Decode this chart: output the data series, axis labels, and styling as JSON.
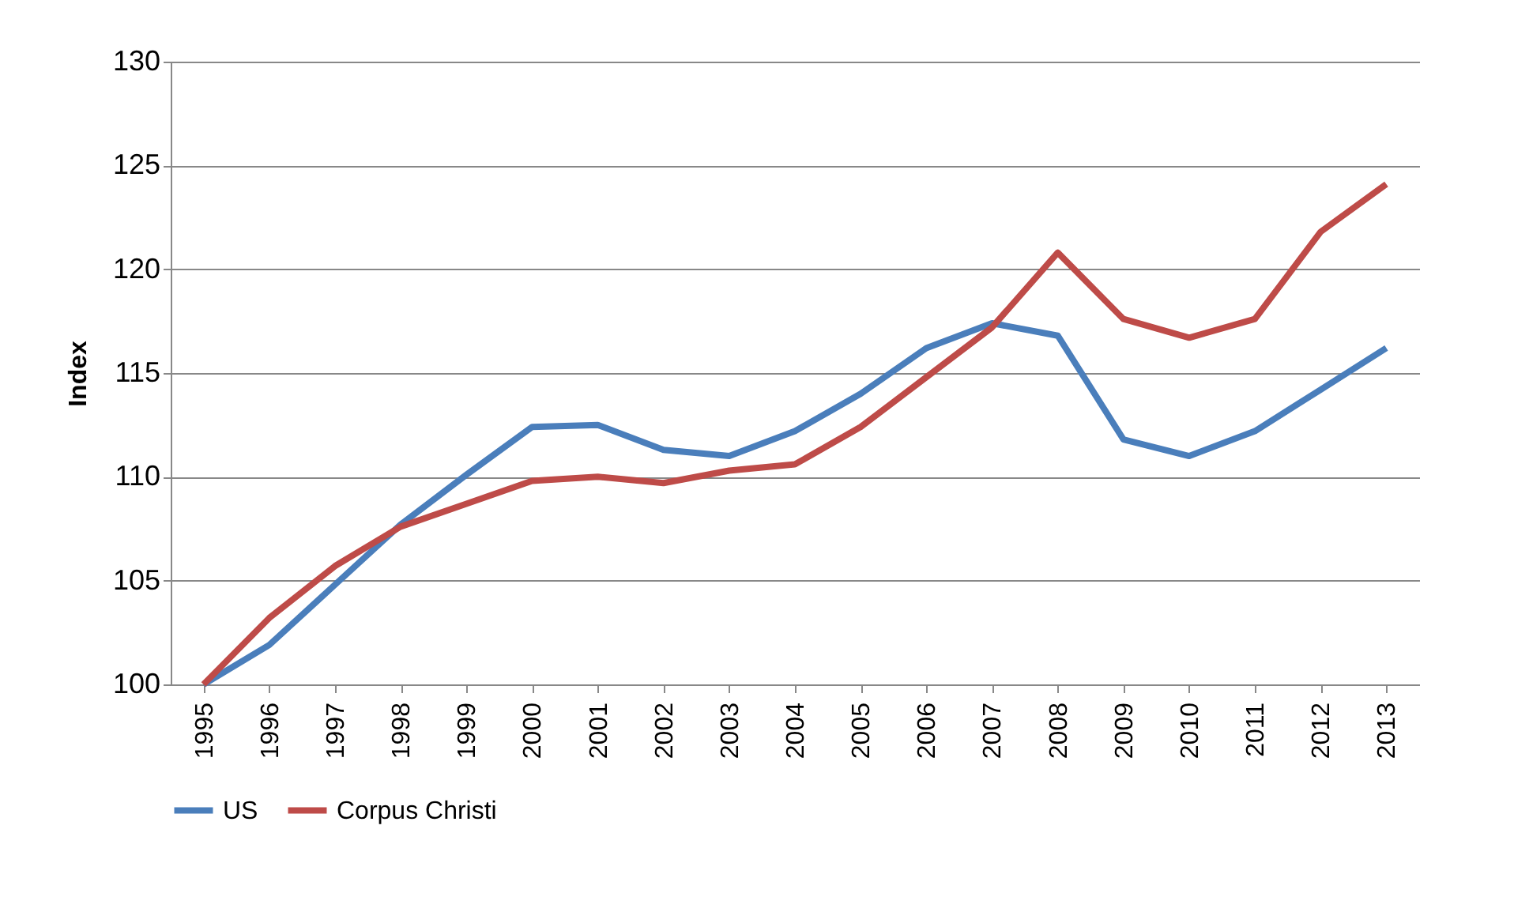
{
  "chart_data": {
    "type": "line",
    "ylabel": "Index",
    "categories": [
      "1995",
      "1996",
      "1997",
      "1998",
      "1999",
      "2000",
      "2001",
      "2002",
      "2003",
      "2004",
      "2005",
      "2006",
      "2007",
      "2008",
      "2009",
      "2010",
      "2011",
      "2012",
      "2013"
    ],
    "series": [
      {
        "name": "US",
        "color": "#4a7ebb",
        "values": [
          100,
          101.9,
          104.8,
          107.7,
          110.1,
          112.4,
          112.5,
          111.3,
          111.0,
          112.2,
          114.0,
          116.2,
          117.4,
          116.8,
          111.8,
          111.0,
          112.2,
          114.2,
          116.2
        ]
      },
      {
        "name": "Corpus Christi",
        "color": "#be4b48",
        "values": [
          100,
          103.2,
          105.7,
          107.6,
          108.7,
          109.8,
          110.0,
          109.7,
          110.3,
          110.6,
          112.4,
          114.8,
          117.2,
          120.8,
          117.6,
          116.7,
          117.6,
          121.8,
          124.1
        ]
      }
    ],
    "ylim": [
      100,
      130
    ],
    "yticks": [
      100,
      105,
      110,
      115,
      120,
      125,
      130
    ],
    "grid": "y",
    "legend": "bottom",
    "marker": "none",
    "line_style": "solid"
  }
}
